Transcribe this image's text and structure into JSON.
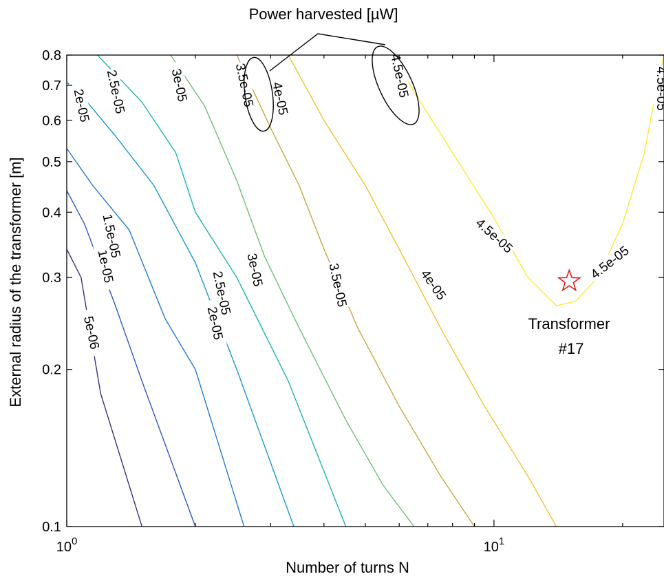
{
  "chart_data": {
    "type": "contour",
    "title": "",
    "xlabel": "Number of turns N",
    "ylabel": "External radius of the transformer [m]",
    "xscale": "log",
    "yscale": "log",
    "xlim": [
      1,
      25
    ],
    "ylim": [
      0.1,
      0.8
    ],
    "x_ticks": [
      {
        "value": 1,
        "base": "10",
        "exp": "0"
      },
      {
        "value": 10,
        "base": "10",
        "exp": "1"
      }
    ],
    "y_ticks": [
      {
        "value": 0.1,
        "label": "0.1"
      },
      {
        "value": 0.2,
        "label": "0.2"
      },
      {
        "value": 0.3,
        "label": "0.3"
      },
      {
        "value": 0.4,
        "label": "0.4"
      },
      {
        "value": 0.5,
        "label": "0.5"
      },
      {
        "value": 0.6,
        "label": "0.6"
      },
      {
        "value": 0.7,
        "label": "0.7"
      },
      {
        "value": 0.8,
        "label": "0.8"
      }
    ],
    "levels": [
      {
        "level": 5e-06,
        "label": "5e-06",
        "color": "#3d2f7e",
        "points": [
          [
            1.0,
            0.34
          ],
          [
            1.08,
            0.3
          ],
          [
            1.2,
            0.18
          ],
          [
            1.5,
            0.1
          ]
        ],
        "labels": [
          {
            "x": 1.14,
            "y": 0.235,
            "angle": 78
          }
        ]
      },
      {
        "level": 1e-05,
        "label": "1e-05",
        "color": "#2f56c8",
        "points": [
          [
            1.0,
            0.44
          ],
          [
            1.1,
            0.38
          ],
          [
            1.3,
            0.265
          ],
          [
            1.5,
            0.19
          ],
          [
            2.0,
            0.1
          ]
        ],
        "labels": [
          {
            "x": 1.23,
            "y": 0.315,
            "angle": 78
          }
        ]
      },
      {
        "level": 1.5e-05,
        "label": "1.5e-05",
        "color": "#2378d8",
        "points": [
          [
            1.0,
            0.53
          ],
          [
            1.15,
            0.45
          ],
          [
            1.4,
            0.37
          ],
          [
            1.7,
            0.25
          ],
          [
            2.0,
            0.2
          ],
          [
            2.6,
            0.1
          ]
        ],
        "labels": [
          {
            "x": 1.27,
            "y": 0.36,
            "angle": 78
          }
        ]
      },
      {
        "level": 2e-05,
        "label": "2e-05",
        "color": "#1b97cf",
        "points": [
          [
            1.0,
            0.71
          ],
          [
            1.1,
            0.66
          ],
          [
            1.3,
            0.56
          ],
          [
            1.6,
            0.45
          ],
          [
            2.0,
            0.32
          ],
          [
            2.5,
            0.2
          ],
          [
            3.4,
            0.1
          ]
        ],
        "labels": [
          {
            "x": 1.08,
            "y": 0.64,
            "angle": 78
          },
          {
            "x": 2.22,
            "y": 0.245,
            "angle": 78
          }
        ]
      },
      {
        "level": 2.5e-05,
        "label": "2.5e-05",
        "color": "#1db3b0",
        "points": [
          [
            1.18,
            0.8
          ],
          [
            1.5,
            0.65
          ],
          [
            1.8,
            0.52
          ],
          [
            2.0,
            0.4
          ],
          [
            2.5,
            0.3
          ],
          [
            3.3,
            0.19
          ],
          [
            4.5,
            0.1
          ]
        ],
        "labels": [
          {
            "x": 1.3,
            "y": 0.68,
            "angle": 78
          },
          {
            "x": 2.3,
            "y": 0.28,
            "angle": 78
          }
        ]
      },
      {
        "level": 3e-05,
        "label": "3e-05",
        "color": "#6fbd76",
        "points": [
          [
            1.75,
            0.8
          ],
          [
            2.1,
            0.64
          ],
          [
            2.5,
            0.46
          ],
          [
            2.9,
            0.33
          ],
          [
            3.5,
            0.24
          ],
          [
            4.5,
            0.16
          ],
          [
            5.5,
            0.12
          ],
          [
            6.5,
            0.1
          ]
        ],
        "labels": [
          {
            "x": 1.83,
            "y": 0.7,
            "angle": 78
          },
          {
            "x": 2.75,
            "y": 0.31,
            "angle": 78
          }
        ]
      },
      {
        "level": 3.5e-05,
        "label": "3.5e-05",
        "color": "#c8a642",
        "points": [
          [
            2.5,
            0.8
          ],
          [
            3.0,
            0.58
          ],
          [
            3.5,
            0.45
          ],
          [
            4.0,
            0.34
          ],
          [
            4.8,
            0.24
          ],
          [
            6.0,
            0.17
          ],
          [
            7.5,
            0.125
          ],
          [
            9.0,
            0.1
          ]
        ],
        "labels": [
          {
            "x": 2.6,
            "y": 0.7,
            "angle": 78
          },
          {
            "x": 4.3,
            "y": 0.29,
            "angle": 78
          }
        ]
      },
      {
        "level": 4e-05,
        "label": "4e-05",
        "color": "#f2c12e",
        "points": [
          [
            3.3,
            0.8
          ],
          [
            4.0,
            0.6
          ],
          [
            5.0,
            0.45
          ],
          [
            6.0,
            0.34
          ],
          [
            7.5,
            0.24
          ],
          [
            9.5,
            0.17
          ],
          [
            12.0,
            0.125
          ],
          [
            14.0,
            0.1
          ]
        ],
        "labels": [
          {
            "x": 3.15,
            "y": 0.66,
            "angle": 78
          },
          {
            "x": 7.2,
            "y": 0.29,
            "angle": 55
          }
        ]
      },
      {
        "level": 4.5e-05,
        "label": "4.5e-05",
        "color": "#ffe82e",
        "points": [
          [
            5.8,
            0.8
          ],
          [
            6.5,
            0.68
          ],
          [
            8.0,
            0.52
          ],
          [
            10.0,
            0.39
          ],
          [
            12.0,
            0.3
          ],
          [
            14.0,
            0.265
          ],
          [
            15.5,
            0.27
          ],
          [
            17.5,
            0.3
          ],
          [
            20.0,
            0.38
          ],
          [
            22.5,
            0.52
          ],
          [
            23.5,
            0.63
          ],
          [
            25.0,
            0.8
          ]
        ],
        "labels": [
          {
            "x": 6.0,
            "y": 0.73,
            "angle": 78
          },
          {
            "x": 10.0,
            "y": 0.36,
            "angle": 42
          },
          {
            "x": 18.7,
            "y": 0.32,
            "angle": -38
          },
          {
            "x": 24.6,
            "y": 0.69,
            "angle": 90
          }
        ]
      }
    ],
    "markers": [
      {
        "x": 15.0,
        "y": 0.295,
        "shape": "star",
        "color": "#e41a1c",
        "label": "Transformer #17"
      }
    ],
    "annotation": {
      "text": "Power harvested [µW]"
    }
  }
}
